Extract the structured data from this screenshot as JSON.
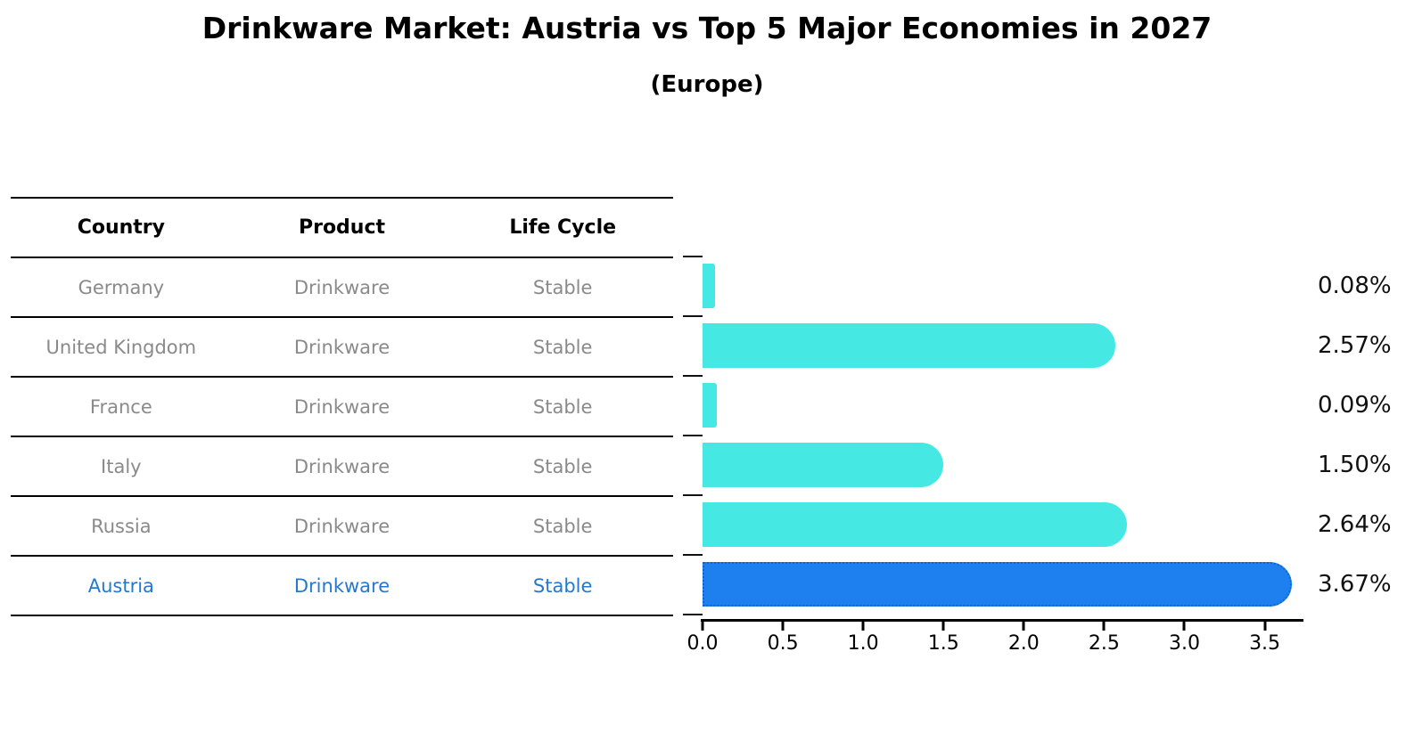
{
  "header": {
    "title": "Drinkware Market: Austria vs Top 5 Major Economies in 2027",
    "subtitle": "(Europe)"
  },
  "table": {
    "headers": [
      "Country",
      "Product",
      "Life Cycle"
    ],
    "rows": [
      {
        "country": "Germany",
        "product": "Drinkware",
        "life_cycle": "Stable",
        "highlighted": false
      },
      {
        "country": "United Kingdom",
        "product": "Drinkware",
        "life_cycle": "Stable",
        "highlighted": false
      },
      {
        "country": "France",
        "product": "Drinkware",
        "life_cycle": "Stable",
        "highlighted": false
      },
      {
        "country": "Italy",
        "product": "Drinkware",
        "life_cycle": "Stable",
        "highlighted": false
      },
      {
        "country": "Russia",
        "product": "Drinkware",
        "life_cycle": "Stable",
        "highlighted": false
      },
      {
        "country": "Austria",
        "product": "Drinkware",
        "life_cycle": "Stable",
        "highlighted": true
      }
    ]
  },
  "chart_data": {
    "type": "bar",
    "orientation": "horizontal",
    "title": "Drinkware Market: Austria vs Top 5 Major Economies in 2027",
    "subtitle": "(Europe)",
    "categories": [
      "Germany",
      "United Kingdom",
      "France",
      "Italy",
      "Russia",
      "Austria"
    ],
    "values": [
      0.08,
      2.57,
      0.09,
      1.5,
      2.64,
      3.67
    ],
    "value_labels": [
      "0.08%",
      "2.57%",
      "0.09%",
      "1.50%",
      "2.64%",
      "3.67%"
    ],
    "unit": "percent",
    "x_ticks": [
      "0.0",
      "0.5",
      "1.0",
      "1.5",
      "2.0",
      "2.5",
      "3.0",
      "3.5"
    ],
    "x_tick_values": [
      0,
      0.5,
      1.0,
      1.5,
      2.0,
      2.5,
      3.0,
      3.5
    ],
    "xlim": [
      0,
      3.73
    ],
    "ylabel": "",
    "xlabel": "",
    "grid": false,
    "legend": null,
    "highlight_index": 5
  },
  "colors": {
    "bar_color": "#46E8E3",
    "highlight_bar_color": "#1E80EE",
    "highlight_border_color": "#1063D2",
    "highlight_text_color": "#2478D0",
    "table_text_color": "#8A8A8A",
    "value_label_color": "#111111",
    "axis_color": "#000000"
  }
}
